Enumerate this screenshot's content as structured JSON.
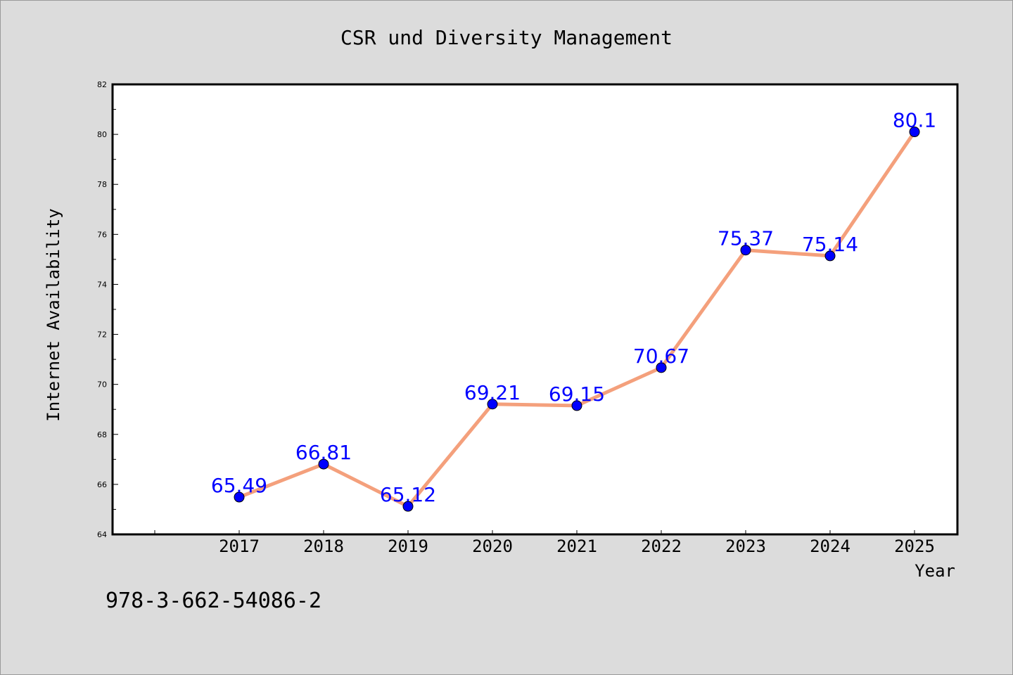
{
  "chart_data": {
    "type": "line",
    "title": "CSR und Diversity Management",
    "xlabel": "Year",
    "ylabel": "Internet Availability",
    "categories": [
      "2017",
      "2018",
      "2019",
      "2020",
      "2021",
      "2022",
      "2023",
      "2024",
      "2025"
    ],
    "series": [
      {
        "values": [
          65.49,
          66.81,
          65.12,
          69.21,
          69.15,
          70.67,
          75.37,
          75.14,
          80.1
        ],
        "labels": [
          "65.49",
          "66.81",
          "65.12",
          "69.21",
          "69.15",
          "70.67",
          "75.37",
          "75.14",
          "80.1"
        ]
      }
    ],
    "ylim": [
      64,
      82
    ],
    "yticks": [
      "64",
      "66",
      "68",
      "70",
      "72",
      "74",
      "76",
      "78",
      "80",
      "82"
    ],
    "grid": false,
    "line_color": "#f4a07c",
    "marker_color": "#0000ff",
    "label_color": "#0000ff"
  },
  "footer_text": "978-3-662-54086-2"
}
